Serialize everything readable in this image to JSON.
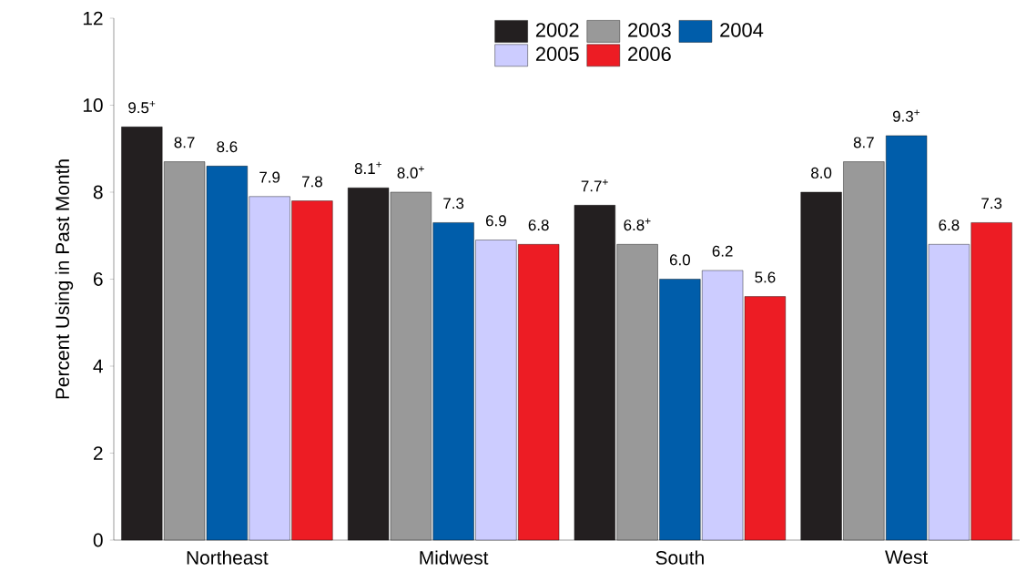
{
  "chart_data": {
    "type": "bar",
    "ylabel": "Percent Using in Past Month",
    "categories": [
      "Northeast",
      "Midwest",
      "South",
      "West"
    ],
    "series": [
      {
        "name": "2002",
        "color": "#231f20",
        "values": [
          9.5,
          8.1,
          7.7,
          8.0
        ],
        "value_labels": [
          "9.5$^{+}$",
          "8.1$^{+}$",
          "7.7$^{+}$",
          "8.0"
        ]
      },
      {
        "name": "2003",
        "color": "#999999",
        "values": [
          8.7,
          8.0,
          6.8,
          8.7
        ],
        "value_labels": [
          "8.7",
          "8.0$^{+}$",
          "6.8$^{+}$",
          "8.7"
        ]
      },
      {
        "name": "2004",
        "color": "#005daa",
        "values": [
          8.6,
          7.3,
          6.0,
          9.3
        ],
        "value_labels": [
          "8.6",
          "7.3",
          "6.0",
          "9.3$^{+}$"
        ]
      },
      {
        "name": "2005",
        "color": "#ccccff",
        "values": [
          7.9,
          6.9,
          6.2,
          6.8
        ],
        "value_labels": [
          "7.9",
          "6.9",
          "6.2",
          "6.8"
        ]
      },
      {
        "name": "2006",
        "color": "#ed1c24",
        "values": [
          7.8,
          6.8,
          5.6,
          7.3
        ],
        "value_labels": [
          "7.8",
          "6.8",
          "5.6",
          "7.3"
        ]
      }
    ],
    "ylim": [
      0,
      12
    ],
    "yticks": [
      0,
      2,
      4,
      6,
      8,
      10,
      12
    ],
    "grid": false,
    "legend": "top"
  }
}
